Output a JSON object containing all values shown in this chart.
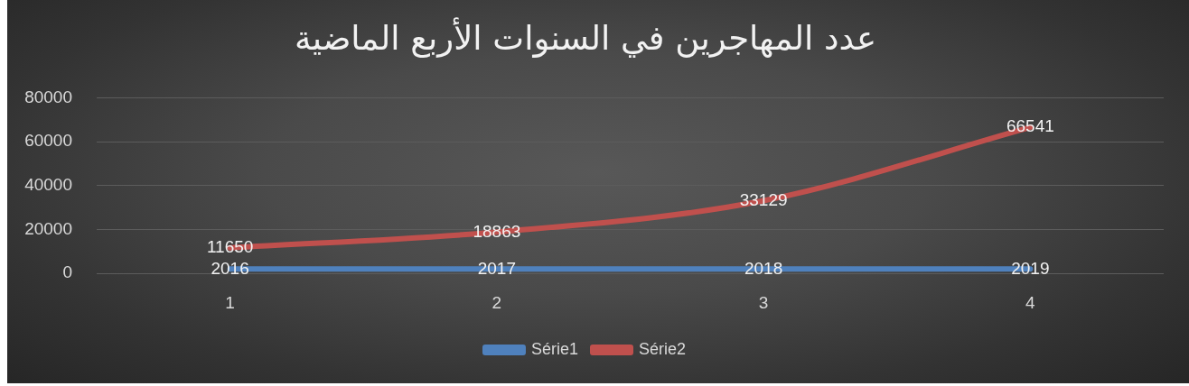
{
  "chart_data": {
    "type": "line",
    "title": "عدد المهاجرين في السنوات الأربع الماضية",
    "categories": [
      "1",
      "2",
      "3",
      "4"
    ],
    "series": [
      {
        "name": "Série1",
        "color": "#4f81bd",
        "values": [
          2016,
          2017,
          2018,
          2019
        ]
      },
      {
        "name": "Série2",
        "color": "#c0504d",
        "values": [
          11650,
          18863,
          33129,
          66541
        ]
      }
    ],
    "ylim": [
      0,
      80000
    ],
    "yticks": [
      0,
      20000,
      40000,
      60000,
      80000
    ],
    "grid": "y",
    "legend": "bottom",
    "marker": "none",
    "data_labels": true
  }
}
